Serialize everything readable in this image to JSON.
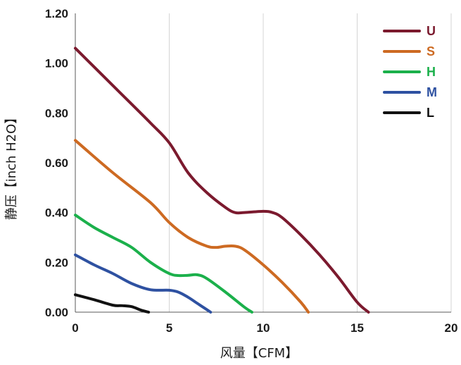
{
  "chart_data": {
    "type": "line",
    "xlabel": "风量【CFM】",
    "ylabel": "静压【inch H2O】",
    "xlim": [
      0,
      20
    ],
    "ylim": [
      0,
      1.2
    ],
    "xticks": [
      0,
      5,
      10,
      15,
      20
    ],
    "yticks": [
      0,
      0.2,
      0.4,
      0.6,
      0.8,
      1.0,
      1.2
    ],
    "xtick_labels": [
      "0",
      "5",
      "10",
      "15",
      "20"
    ],
    "ytick_labels": [
      "0.00",
      "0.20",
      "0.40",
      "0.60",
      "0.80",
      "1.00",
      "1.20"
    ],
    "grid": "vertical",
    "legend_position": "top-right",
    "series": [
      {
        "name": "U",
        "color": "#7b1a2e",
        "x": [
          0,
          2,
          4,
          5,
          6,
          7,
          8,
          8.5,
          9,
          10,
          10.5,
          11,
          12,
          13,
          14,
          15,
          15.6
        ],
        "y": [
          1.06,
          0.91,
          0.76,
          0.68,
          0.56,
          0.48,
          0.42,
          0.4,
          0.4,
          0.405,
          0.4,
          0.38,
          0.31,
          0.23,
          0.14,
          0.04,
          0.0
        ]
      },
      {
        "name": "S",
        "color": "#cd6a22",
        "x": [
          0,
          2,
          4,
          5,
          6,
          7,
          7.5,
          8,
          8.5,
          9,
          10,
          11,
          12,
          12.4
        ],
        "y": [
          0.69,
          0.56,
          0.44,
          0.36,
          0.3,
          0.265,
          0.26,
          0.265,
          0.265,
          0.25,
          0.19,
          0.12,
          0.04,
          0.0
        ]
      },
      {
        "name": "H",
        "color": "#1bb04b",
        "x": [
          0,
          1,
          2,
          3,
          4,
          5,
          5.5,
          6,
          6.5,
          7,
          8,
          9,
          9.4
        ],
        "y": [
          0.39,
          0.34,
          0.3,
          0.26,
          0.2,
          0.155,
          0.147,
          0.148,
          0.15,
          0.135,
          0.08,
          0.02,
          0.0
        ]
      },
      {
        "name": "M",
        "color": "#2e51a1",
        "x": [
          0,
          1,
          2,
          3,
          4,
          5,
          5.5,
          6,
          6.5,
          7,
          7.2
        ],
        "y": [
          0.23,
          0.19,
          0.155,
          0.115,
          0.09,
          0.088,
          0.08,
          0.06,
          0.035,
          0.01,
          0.0
        ]
      },
      {
        "name": "L",
        "color": "#111111",
        "x": [
          0,
          1,
          2,
          2.5,
          3,
          3.5,
          3.9
        ],
        "y": [
          0.07,
          0.05,
          0.028,
          0.026,
          0.022,
          0.008,
          0.0
        ]
      }
    ]
  }
}
